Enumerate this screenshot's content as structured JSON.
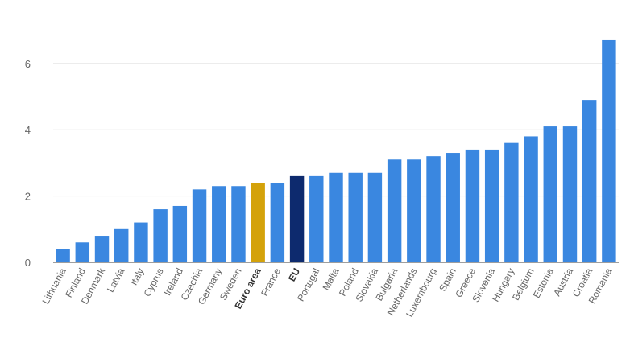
{
  "chart_data": {
    "type": "bar",
    "title": "",
    "xlabel": "",
    "ylabel": "",
    "ylim": [
      0,
      7.8
    ],
    "yticks": [
      0,
      2,
      4,
      6
    ],
    "grid": true,
    "categories": [
      "Lithuania",
      "Finland",
      "Denmark",
      "Latvia",
      "Italy",
      "Cyprus",
      "Ireland",
      "Czechia",
      "Germany",
      "Sweden",
      "Euro area",
      "France",
      "EU",
      "Portugal",
      "Malta",
      "Poland",
      "Slovakia",
      "Bulgaria",
      "Netherlands",
      "Luxembourg",
      "Spain",
      "Greece",
      "Slovenia",
      "Hungary",
      "Belgium",
      "Estonia",
      "Austria",
      "Croatia",
      "Romania"
    ],
    "values": [
      0.4,
      0.6,
      0.8,
      1.0,
      1.2,
      1.6,
      1.7,
      2.2,
      2.3,
      2.3,
      2.4,
      2.4,
      2.6,
      2.6,
      2.7,
      2.7,
      2.7,
      3.1,
      3.1,
      3.2,
      3.3,
      3.4,
      3.4,
      3.6,
      3.8,
      4.1,
      4.1,
      4.9,
      6.7
    ],
    "bold_categories": [
      "Euro area",
      "EU"
    ],
    "colors": {
      "default": "#3a87e0",
      "Euro area": "#d4a20a",
      "EU": "#0d2a6e",
      "grid": "#e6e6e6",
      "axis": "#9e9e9e"
    }
  }
}
